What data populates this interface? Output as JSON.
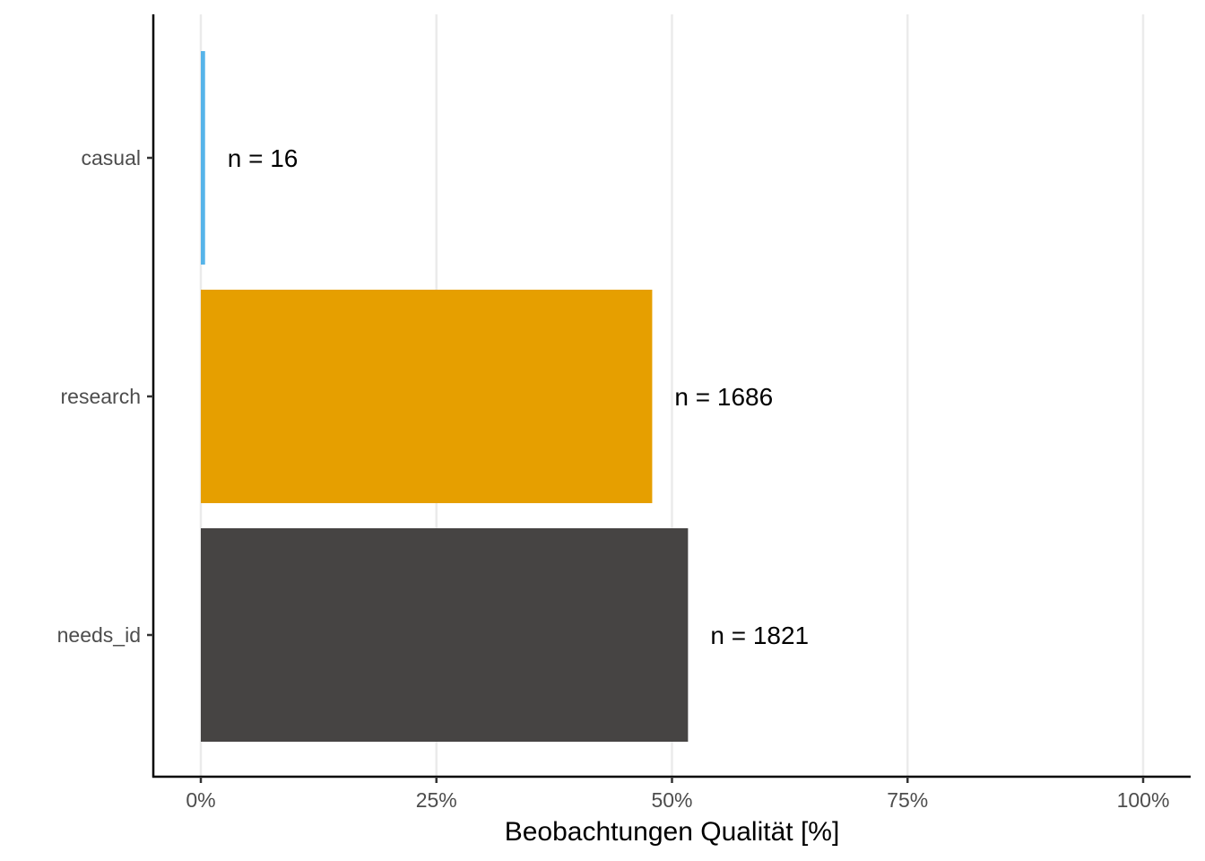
{
  "chart_data": {
    "type": "bar",
    "orientation": "horizontal",
    "categories": [
      "casual",
      "research",
      "needs_id"
    ],
    "values": [
      0.45,
      47.9,
      51.7
    ],
    "labels": [
      "n = 16",
      "n = 1686",
      "n = 1821"
    ],
    "colors": [
      "#56b4e9",
      "#e69f00",
      "#464443"
    ],
    "xlabel": "Beobachtungen Qualität [%]",
    "ylabel": "",
    "xlim": [
      0,
      100
    ],
    "xticks": [
      0,
      25,
      50,
      75,
      100
    ],
    "xtick_labels": [
      "0%",
      "25%",
      "50%",
      "75%",
      "100%"
    ],
    "grid": "vertical major",
    "legend": "none"
  }
}
